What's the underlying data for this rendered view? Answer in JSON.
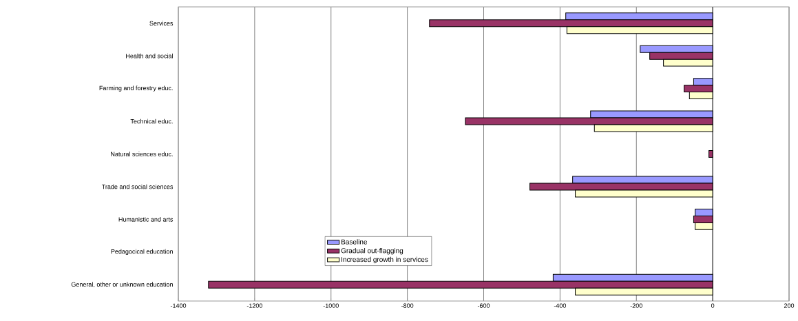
{
  "chart_data": {
    "type": "bar",
    "orientation": "horizontal",
    "categories": [
      "Services",
      "Health and social",
      "Farming and forestry educ.",
      "Technical educ.",
      "Natural sciences educ.",
      "Trade and social sciences",
      "Humanistic and arts",
      "Pedagocical education",
      "General, other or unknown education"
    ],
    "series": [
      {
        "name": "Baseline",
        "color": "#9999ff",
        "values": [
          -385,
          -190,
          -50,
          -320,
          null,
          -367,
          -46,
          null,
          -418
        ]
      },
      {
        "name": "Gradual out-flagging",
        "color": "#993366",
        "values": [
          -742,
          -165,
          -75,
          -648,
          -10,
          -479,
          -50,
          null,
          -1321
        ]
      },
      {
        "name": "Increased growth in services",
        "color": "#ffffcc",
        "values": [
          -382,
          -129,
          -61,
          -310,
          null,
          -360,
          -46,
          null,
          -360
        ]
      }
    ],
    "xlim": [
      -1400,
      200
    ],
    "xticks": [
      -1400,
      -1200,
      -1000,
      -800,
      -600,
      -400,
      -200,
      0,
      200
    ],
    "grid": "x",
    "legend": "bottom left"
  }
}
